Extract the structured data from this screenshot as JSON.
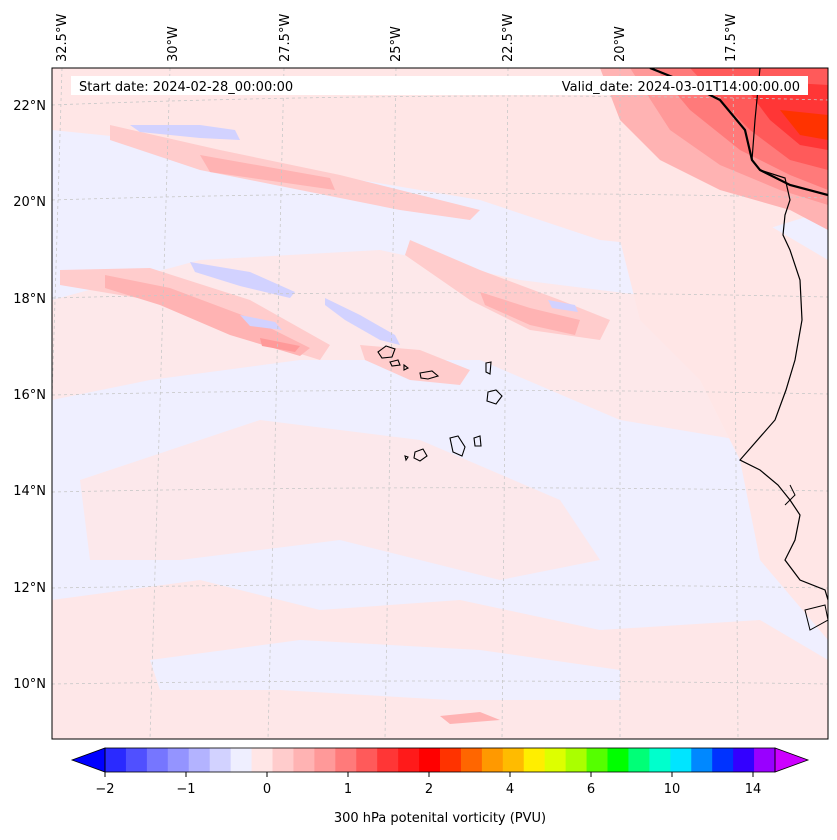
{
  "header": {
    "start_label": "Start date: 2024-02-28_00:00:00",
    "valid_label": "Valid_date: 2024-03-01T14:00:00.00"
  },
  "axes": {
    "lon_labels": [
      "32.5°W",
      "30°W",
      "27.5°W",
      "25°W",
      "22.5°W",
      "20°W",
      "17.5°W"
    ],
    "lat_labels": [
      "22°N",
      "20°N",
      "18°N",
      "16°N",
      "14°N",
      "12°N",
      "10°N"
    ]
  },
  "colorbar": {
    "title": "300 hPa potenital vorticity (PVU)",
    "tick_labels": [
      "−2",
      "−1",
      "0",
      "1",
      "2",
      "4",
      "6",
      "10",
      "14"
    ],
    "colors": [
      "#0000ff",
      "#2a2aff",
      "#5050ff",
      "#7676ff",
      "#9494ff",
      "#b3b3ff",
      "#d2d2ff",
      "#efefff",
      "#ffe6e6",
      "#ffcccc",
      "#ffb3b3",
      "#ff9999",
      "#ff7a7a",
      "#ff5a5a",
      "#ff3636",
      "#ff1a1a",
      "#ff0000",
      "#ff3300",
      "#ff6600",
      "#ff9900",
      "#ffbb00",
      "#ffee00",
      "#ddff00",
      "#aaff00",
      "#55ff00",
      "#00ff00",
      "#00ff77",
      "#00ffcc",
      "#00e5ff",
      "#0088ff",
      "#0033ff",
      "#3300ff",
      "#9900ff",
      "#cc00ff"
    ]
  },
  "map_colors": {
    "background": "#efefff",
    "coast": "#000000",
    "grid": "#c8c8c8"
  }
}
